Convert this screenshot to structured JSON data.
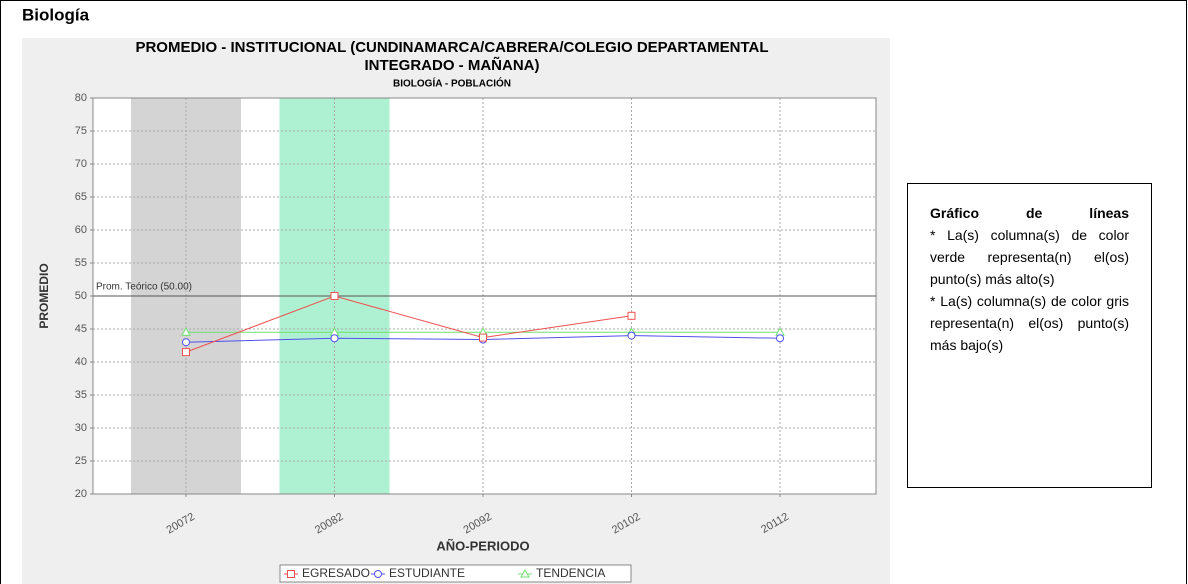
{
  "heading": "Biología",
  "chart_data": {
    "type": "line",
    "title": [
      "PROMEDIO - INSTITUCIONAL (CUNDINAMARCA/CABRERA/COLEGIO DEPARTAMENTAL",
      "INTEGRADO - MAÑANA)"
    ],
    "subtitle": "BIOLOGÍA - POBLACIÓN",
    "x_label": "AÑO-PERIODO",
    "y_label": "PROMEDIO",
    "categories": [
      "20072",
      "20082",
      "20092",
      "20102",
      "20112"
    ],
    "series": [
      {
        "name": "EGRESADO",
        "color": "#f05050",
        "marker": "square",
        "values": [
          41.5,
          50,
          43.7,
          47,
          null
        ]
      },
      {
        "name": "ESTUDIANTE",
        "color": "#5050f0",
        "marker": "circle",
        "values": [
          43,
          43.6,
          43.4,
          44,
          43.6
        ]
      },
      {
        "name": "TENDENCIA",
        "color": "#70e070",
        "marker": "triangle",
        "values": [
          44.5,
          44.5,
          44.5,
          44.5,
          44.5
        ]
      }
    ],
    "reference": {
      "value": 50,
      "label": "Prom. Teórico (50.00)"
    },
    "highest_color": "#aef0d2",
    "lowest_color": "#d4d4d4",
    "ylim": [
      20,
      80
    ],
    "yticks": [
      20,
      25,
      30,
      35,
      40,
      45,
      50,
      55,
      60,
      65,
      70,
      75,
      80
    ],
    "grid": true,
    "legend": "bottom"
  },
  "note": {
    "title": "Gráfico de líneas",
    "items": [
      "* La(s) columna(s) de color verde representa(n) el(os) punto(s) más alto(s)",
      "* La(s) columna(s) de color gris representa(n) el(os) punto(s) más bajo(s)"
    ]
  }
}
